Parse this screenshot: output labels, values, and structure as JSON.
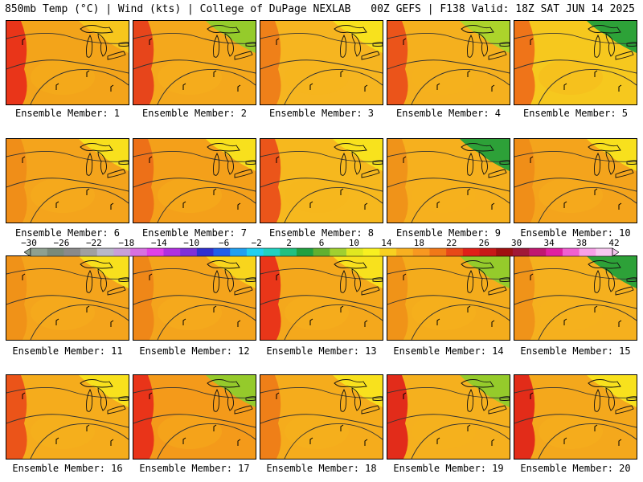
{
  "header": {
    "left_title": "850mb Temp (°C) | Wind (kts) | College of DuPage NEXLAB",
    "right_title": "00Z GEFS | F138 Valid: 18Z SAT JUN 14 2025"
  },
  "panels": [
    {
      "label": "Ensemble Member: 1",
      "base": "#f3a41a",
      "warm": "#e8291a",
      "cool": "#f7c81e"
    },
    {
      "label": "Ensemble Member: 2",
      "base": "#f4a81c",
      "warm": "#e63a1c",
      "cool": "#8fcc2c"
    },
    {
      "label": "Ensemble Member: 3",
      "base": "#f6b520",
      "warm": "#ee7a18",
      "cool": "#f8e41e"
    },
    {
      "label": "Ensemble Member: 4",
      "base": "#f5b01e",
      "warm": "#ea4a1a",
      "cool": "#a8d62c"
    },
    {
      "label": "Ensemble Member: 5",
      "base": "#f6c81e",
      "warm": "#ee6a18",
      "cool": "#22a03a"
    },
    {
      "label": "Ensemble Member: 6",
      "base": "#f4a41c",
      "warm": "#ef8c18",
      "cool": "#f8e41e"
    },
    {
      "label": "Ensemble Member: 7",
      "base": "#f4a01a",
      "warm": "#ec6a18",
      "cool": "#f8e41e"
    },
    {
      "label": "Ensemble Member: 8",
      "base": "#f6b81e",
      "warm": "#ea4a1a",
      "cool": "#f8e41e"
    },
    {
      "label": "Ensemble Member: 9",
      "base": "#f6b01e",
      "warm": "#ef9018",
      "cool": "#22a03a"
    },
    {
      "label": "Ensemble Member: 10",
      "base": "#f4a41c",
      "warm": "#ef8c18",
      "cool": "#f8e41e"
    },
    {
      "label": "Ensemble Member: 11",
      "base": "#f4a41c",
      "warm": "#ef9018",
      "cool": "#f8e41e"
    },
    {
      "label": "Ensemble Member: 12",
      "base": "#f4a41c",
      "warm": "#ee8418",
      "cool": "#f8d81e"
    },
    {
      "label": "Ensemble Member: 13",
      "base": "#f4a81c",
      "warm": "#e8291a",
      "cool": "#f8e41e"
    },
    {
      "label": "Ensemble Member: 14",
      "base": "#f4ac1c",
      "warm": "#ef9018",
      "cool": "#8fcc2c"
    },
    {
      "label": "Ensemble Member: 15",
      "base": "#f5b01e",
      "warm": "#ef9018",
      "cool": "#22a03a"
    },
    {
      "label": "Ensemble Member: 16",
      "base": "#f5ac1c",
      "warm": "#ea4a1a",
      "cool": "#f8e41e"
    },
    {
      "label": "Ensemble Member: 17",
      "base": "#f49a1a",
      "warm": "#e8291a",
      "cool": "#8fcc2c"
    },
    {
      "label": "Ensemble Member: 18",
      "base": "#f5ac1c",
      "warm": "#ee7a18",
      "cool": "#f8e41e"
    },
    {
      "label": "Ensemble Member: 19",
      "base": "#f5b01e",
      "warm": "#e01e1a",
      "cool": "#8fcc2c"
    },
    {
      "label": "Ensemble Member: 20",
      "base": "#f4a81c",
      "warm": "#e01e1a",
      "cool": "#f8e41e"
    }
  ],
  "colorbar": {
    "ticks": [
      "−30",
      "−26",
      "−22",
      "−18",
      "−14",
      "−10",
      "−6",
      "−2",
      "2",
      "6",
      "10",
      "14",
      "18",
      "22",
      "26",
      "30",
      "34",
      "38",
      "42"
    ],
    "colors": [
      "#8fa08f",
      "#7a8a7a",
      "#8a8a8a",
      "#a0a0a0",
      "#b8b8c8",
      "#c8a0d8",
      "#d870e0",
      "#e040e8",
      "#b030e0",
      "#8030d8",
      "#3030d0",
      "#2060e8",
      "#20a0f0",
      "#20d0f0",
      "#20d0c0",
      "#20c080",
      "#20a040",
      "#60b030",
      "#a0d030",
      "#e0e820",
      "#f8f020",
      "#f8d020",
      "#f8b020",
      "#f89820",
      "#f07818",
      "#e84818",
      "#e02018",
      "#c81818",
      "#a01010",
      "#a01838",
      "#c01870",
      "#e020a0",
      "#f060d0",
      "#f8a0e8",
      "#f8c8f0"
    ]
  }
}
